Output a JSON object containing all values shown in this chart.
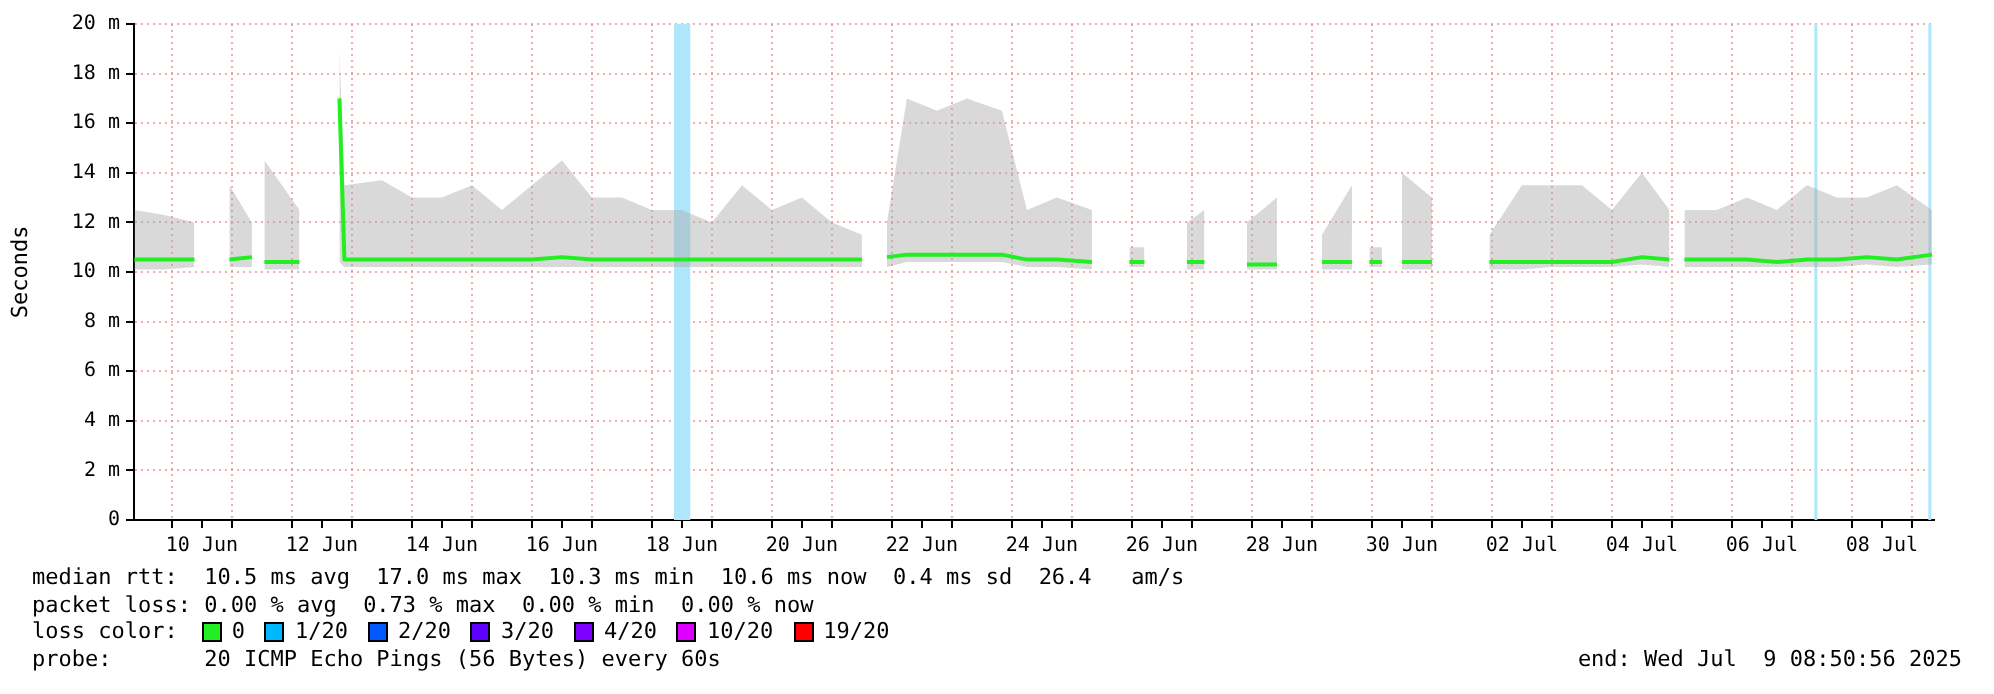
{
  "chart_data": {
    "type": "line",
    "ylabel": "Seconds",
    "legend": "bottom",
    "legend_title": "loss color:",
    "grid": true,
    "marker": "none",
    "xlim": [
      "2025-06-09T08:50",
      "2025-07-09T08:50"
    ],
    "xticks": [
      {
        "value": "2025-06-10T00:00",
        "label": null
      },
      {
        "value": "2025-06-10T12:00",
        "label": "10 Jun"
      },
      {
        "value": "2025-06-11T00:00",
        "label": null
      },
      {
        "value": "2025-06-12T00:00",
        "label": null
      },
      {
        "value": "2025-06-12T12:00",
        "label": "12 Jun"
      },
      {
        "value": "2025-06-13T00:00",
        "label": null
      },
      {
        "value": "2025-06-14T00:00",
        "label": null
      },
      {
        "value": "2025-06-14T12:00",
        "label": "14 Jun"
      },
      {
        "value": "2025-06-15T00:00",
        "label": null
      },
      {
        "value": "2025-06-16T00:00",
        "label": null
      },
      {
        "value": "2025-06-16T12:00",
        "label": "16 Jun"
      },
      {
        "value": "2025-06-17T00:00",
        "label": null
      },
      {
        "value": "2025-06-18T00:00",
        "label": null
      },
      {
        "value": "2025-06-18T12:00",
        "label": "18 Jun"
      },
      {
        "value": "2025-06-19T00:00",
        "label": null
      },
      {
        "value": "2025-06-20T00:00",
        "label": null
      },
      {
        "value": "2025-06-20T12:00",
        "label": "20 Jun"
      },
      {
        "value": "2025-06-21T00:00",
        "label": null
      },
      {
        "value": "2025-06-22T00:00",
        "label": null
      },
      {
        "value": "2025-06-22T12:00",
        "label": "22 Jun"
      },
      {
        "value": "2025-06-23T00:00",
        "label": null
      },
      {
        "value": "2025-06-24T00:00",
        "label": null
      },
      {
        "value": "2025-06-24T12:00",
        "label": "24 Jun"
      },
      {
        "value": "2025-06-25T00:00",
        "label": null
      },
      {
        "value": "2025-06-26T00:00",
        "label": null
      },
      {
        "value": "2025-06-26T12:00",
        "label": "26 Jun"
      },
      {
        "value": "2025-06-27T00:00",
        "label": null
      },
      {
        "value": "2025-06-28T00:00",
        "label": null
      },
      {
        "value": "2025-06-28T12:00",
        "label": "28 Jun"
      },
      {
        "value": "2025-06-29T00:00",
        "label": null
      },
      {
        "value": "2025-06-30T00:00",
        "label": null
      },
      {
        "value": "2025-06-30T12:00",
        "label": "30 Jun"
      },
      {
        "value": "2025-07-01T00:00",
        "label": null
      },
      {
        "value": "2025-07-02T00:00",
        "label": null
      },
      {
        "value": "2025-07-02T12:00",
        "label": "02 Jul"
      },
      {
        "value": "2025-07-03T00:00",
        "label": null
      },
      {
        "value": "2025-07-04T00:00",
        "label": null
      },
      {
        "value": "2025-07-04T12:00",
        "label": "04 Jul"
      },
      {
        "value": "2025-07-05T00:00",
        "label": null
      },
      {
        "value": "2025-07-06T00:00",
        "label": null
      },
      {
        "value": "2025-07-06T12:00",
        "label": "06 Jul"
      },
      {
        "value": "2025-07-07T00:00",
        "label": null
      },
      {
        "value": "2025-07-08T00:00",
        "label": null
      },
      {
        "value": "2025-07-08T12:00",
        "label": "08 Jul"
      },
      {
        "value": "2025-07-09T00:00",
        "label": null
      }
    ],
    "ylim": [
      0,
      20
    ],
    "yticks": [
      {
        "value": 0,
        "label": "0"
      },
      {
        "value": 2,
        "label": "2 m"
      },
      {
        "value": 4,
        "label": "4 m"
      },
      {
        "value": 6,
        "label": "6 m"
      },
      {
        "value": 8,
        "label": "8 m"
      },
      {
        "value": 10,
        "label": "10 m"
      },
      {
        "value": 12,
        "label": "12 m"
      },
      {
        "value": 14,
        "label": "14 m"
      },
      {
        "value": 16,
        "label": "16 m"
      },
      {
        "value": 18,
        "label": "18 m"
      },
      {
        "value": 20,
        "label": "20 m"
      }
    ],
    "series": [
      {
        "name": "0",
        "color": "#22ee22",
        "x": [
          "2025-06-09T09:00",
          "2025-06-09T21:00",
          "2025-06-10T09:00",
          "2025-06-10T15:00",
          "2025-06-10T23:00",
          "2025-06-11T08:00",
          "2025-06-11T10:00",
          "2025-06-11T13:00",
          "2025-06-12T03:00",
          "2025-06-12T10:00",
          "2025-06-12T19:00",
          "2025-06-12T21:00",
          "2025-06-13T12:00",
          "2025-06-14T00:00",
          "2025-06-14T12:00",
          "2025-06-15T00:00",
          "2025-06-15T12:00",
          "2025-06-16T00:00",
          "2025-06-16T12:00",
          "2025-06-17T00:00",
          "2025-06-17T12:00",
          "2025-06-18T00:00",
          "2025-06-18T12:00",
          "2025-06-19T00:00",
          "2025-06-19T12:00",
          "2025-06-20T00:00",
          "2025-06-20T12:00",
          "2025-06-21T00:00",
          "2025-06-21T12:00",
          "2025-06-21T17:00",
          "2025-06-21T22:00",
          "2025-06-22T06:00",
          "2025-06-22T18:00",
          "2025-06-23T06:00",
          "2025-06-23T20:00",
          "2025-06-24T06:00",
          "2025-06-24T18:00",
          "2025-06-25T08:00",
          "2025-06-25T14:00",
          "2025-06-25T23:00",
          "2025-06-26T05:00",
          "2025-06-26T14:00",
          "2025-06-26T22:00",
          "2025-06-27T05:00",
          "2025-06-27T14:00",
          "2025-06-27T22:00",
          "2025-06-28T10:00",
          "2025-06-28T18:00",
          "2025-06-29T04:00",
          "2025-06-29T16:00",
          "2025-06-29T20:00",
          "2025-06-29T23:00",
          "2025-06-30T04:00",
          "2025-06-30T07:00",
          "2025-06-30T12:00",
          "2025-07-01T00:00",
          "2025-07-01T12:00",
          "2025-07-01T23:00",
          "2025-07-02T12:00",
          "2025-07-03T00:00",
          "2025-07-03T12:00",
          "2025-07-04T00:00",
          "2025-07-04T12:00",
          "2025-07-04T23:00",
          "2025-07-05T02:00",
          "2025-07-05T05:00",
          "2025-07-05T18:00",
          "2025-07-06T06:00",
          "2025-07-06T18:00",
          "2025-07-07T06:00",
          "2025-07-07T18:00",
          "2025-07-08T06:00",
          "2025-07-08T18:00",
          "2025-07-09T08:00"
        ],
        "values": [
          10.5,
          10.5,
          10.5,
          null,
          10.5,
          10.6,
          null,
          10.4,
          10.4,
          null,
          17.0,
          10.5,
          10.5,
          10.5,
          10.5,
          10.5,
          10.5,
          10.5,
          10.6,
          10.5,
          10.5,
          10.5,
          10.5,
          10.5,
          10.5,
          10.5,
          10.5,
          10.5,
          10.5,
          null,
          10.6,
          10.7,
          10.7,
          10.7,
          10.7,
          10.5,
          10.5,
          10.4,
          null,
          10.4,
          10.4,
          null,
          10.4,
          10.4,
          null,
          10.3,
          10.3,
          null,
          10.4,
          10.4,
          null,
          10.4,
          10.4,
          null,
          10.4,
          10.4,
          null,
          10.4,
          10.4,
          10.4,
          10.4,
          10.4,
          10.6,
          10.5,
          null,
          10.5,
          10.5,
          10.5,
          10.4,
          10.5,
          10.5,
          10.6,
          10.5,
          10.7
        ],
        "lower": [
          10.1,
          10.1,
          10.2,
          null,
          10.2,
          10.2,
          null,
          10.1,
          10.1,
          null,
          10.4,
          10.2,
          10.2,
          10.2,
          10.2,
          10.2,
          10.2,
          10.2,
          10.2,
          10.2,
          10.2,
          10.2,
          10.2,
          10.2,
          10.2,
          10.2,
          10.2,
          10.2,
          10.2,
          null,
          10.2,
          10.4,
          10.4,
          10.4,
          10.4,
          10.2,
          10.2,
          10.1,
          null,
          10.2,
          10.2,
          null,
          10.1,
          10.1,
          null,
          10.1,
          10.1,
          null,
          10.1,
          10.1,
          null,
          10.2,
          10.2,
          null,
          10.1,
          10.1,
          null,
          10.1,
          10.1,
          10.2,
          10.2,
          10.2,
          10.3,
          10.2,
          null,
          10.2,
          10.2,
          10.2,
          10.2,
          10.2,
          10.2,
          10.3,
          10.2,
          10.3
        ],
        "upper": [
          12.5,
          12.3,
          12.0,
          null,
          13.5,
          12.0,
          null,
          14.5,
          12.5,
          null,
          19.0,
          13.5,
          13.7,
          13.0,
          13.0,
          13.5,
          12.5,
          13.5,
          14.5,
          13.0,
          13.0,
          12.5,
          12.5,
          12.0,
          13.5,
          12.5,
          13.0,
          12.0,
          11.5,
          null,
          12.0,
          17.0,
          16.5,
          17.0,
          16.5,
          12.5,
          13.0,
          12.5,
          null,
          11.0,
          11.0,
          null,
          12.0,
          12.5,
          null,
          12.0,
          13.0,
          null,
          11.5,
          13.5,
          null,
          11.0,
          11.0,
          null,
          14.0,
          13.0,
          null,
          11.5,
          13.5,
          13.5,
          13.5,
          12.5,
          14.0,
          12.5,
          null,
          12.5,
          12.5,
          13.0,
          12.5,
          13.5,
          13.0,
          13.0,
          13.5,
          12.5
        ]
      },
      {
        "name": "1/20",
        "color": "#00b8ff"
      },
      {
        "name": "2/20",
        "color": "#0059ff"
      },
      {
        "name": "3/20",
        "color": "#5e00ff"
      },
      {
        "name": "4/20",
        "color": "#7e00ff"
      },
      {
        "name": "10/20",
        "color": "#dd00ff"
      },
      {
        "name": "19/20",
        "color": "#ff0000"
      }
    ],
    "bands": [
      {
        "axis": "x",
        "from": "2025-06-18T08:50",
        "to": "2025-06-18T15:20",
        "color": "#aee6fb"
      }
    ],
    "ref_lines": [
      {
        "axis": "x",
        "value": "2025-07-07T09:35",
        "color": "#aee6fb"
      },
      {
        "axis": "x",
        "value": "2025-07-09T07:10",
        "color": "#aee6fb"
      }
    ],
    "annotations": [
      "median rtt:  10.5 ms avg  17.0 ms max  10.3 ms min  10.6 ms now  0.4 ms sd  26.4   am/s",
      "packet loss: 0.00 % avg  0.73 % max  0.00 % min  0.00 % now",
      "probe:       20 ICMP Echo Pings (56 Bytes) every 60s",
      "end: Wed Jul  9 08:50:56 2025"
    ]
  }
}
